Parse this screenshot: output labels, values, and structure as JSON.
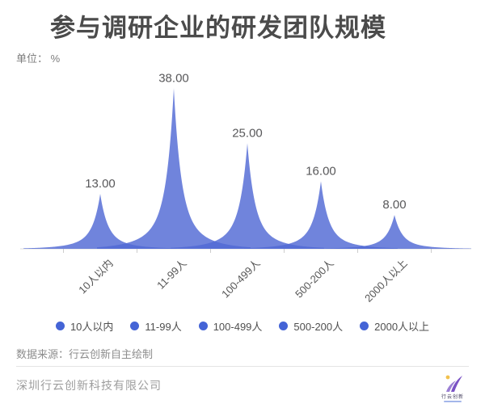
{
  "header": {
    "title": "参与调研企业的研发团队规模",
    "unit_label": "单位： %"
  },
  "chart_data": {
    "type": "area",
    "subtype": "sharp-peak-ridges",
    "title": "参与调研企业的研发团队规模",
    "unit": "%",
    "categories": [
      "10人以内",
      "11-99人",
      "100-499人",
      "500-200人",
      "2000人以上"
    ],
    "values": [
      13,
      38,
      25,
      16,
      8
    ],
    "value_labels": [
      "13.00",
      "38.00",
      "25.00",
      "16.00",
      "8.00"
    ],
    "ylim": [
      0,
      40
    ],
    "grid": false,
    "legend_position": "bottom",
    "x_axis_label_rotation": -45
  },
  "colors": {
    "peak_fill": "rgba(80,105,212,0.82)",
    "legend_dot": "#4464D6",
    "axis_line": "#dcdcdc",
    "tick": "#cccccc",
    "value_label": "#58585a",
    "title": "#4b4b4b"
  },
  "source": {
    "text": "数据来源：行云创新自主绘制"
  },
  "footer": {
    "company": "深圳行云创新科技有限公司",
    "logo_name": "行云创新"
  }
}
